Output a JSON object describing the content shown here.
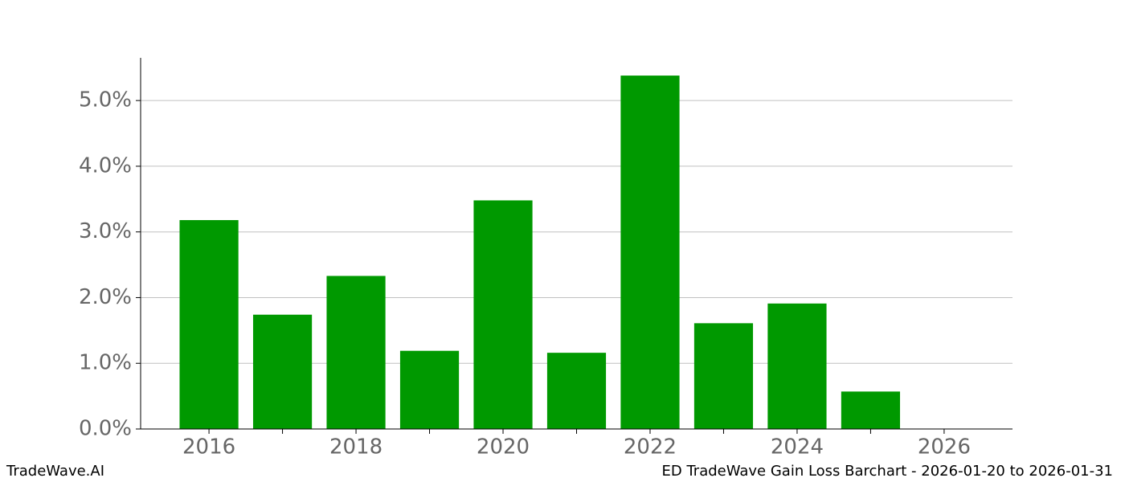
{
  "chart_data": {
    "type": "bar",
    "x": [
      2016,
      2017,
      2018,
      2019,
      2020,
      2021,
      2022,
      2023,
      2024,
      2025
    ],
    "values": [
      3.18,
      1.74,
      2.33,
      1.19,
      3.48,
      1.16,
      5.38,
      1.61,
      1.91,
      0.57
    ],
    "color": "#009900",
    "bar_width": 0.8,
    "xlim": [
      2015.07,
      2026.93
    ],
    "xticks": [
      2016,
      2018,
      2020,
      2022,
      2024,
      2026
    ],
    "xticks_minor": [
      2017,
      2019,
      2021,
      2023,
      2025
    ],
    "ylim": [
      0,
      5.65
    ],
    "yticks": [
      {
        "value": 0,
        "label": "0.0%"
      },
      {
        "value": 1,
        "label": "1.0%"
      },
      {
        "value": 2,
        "label": "2.0%"
      },
      {
        "value": 3,
        "label": "3.0%"
      },
      {
        "value": 4,
        "label": "4.0%"
      },
      {
        "value": 5,
        "label": "5.0%"
      }
    ],
    "grid": true,
    "brand": "TradeWave.AI",
    "caption": "ED TradeWave Gain Loss Barchart - 2026-01-20 to 2026-01-31"
  }
}
